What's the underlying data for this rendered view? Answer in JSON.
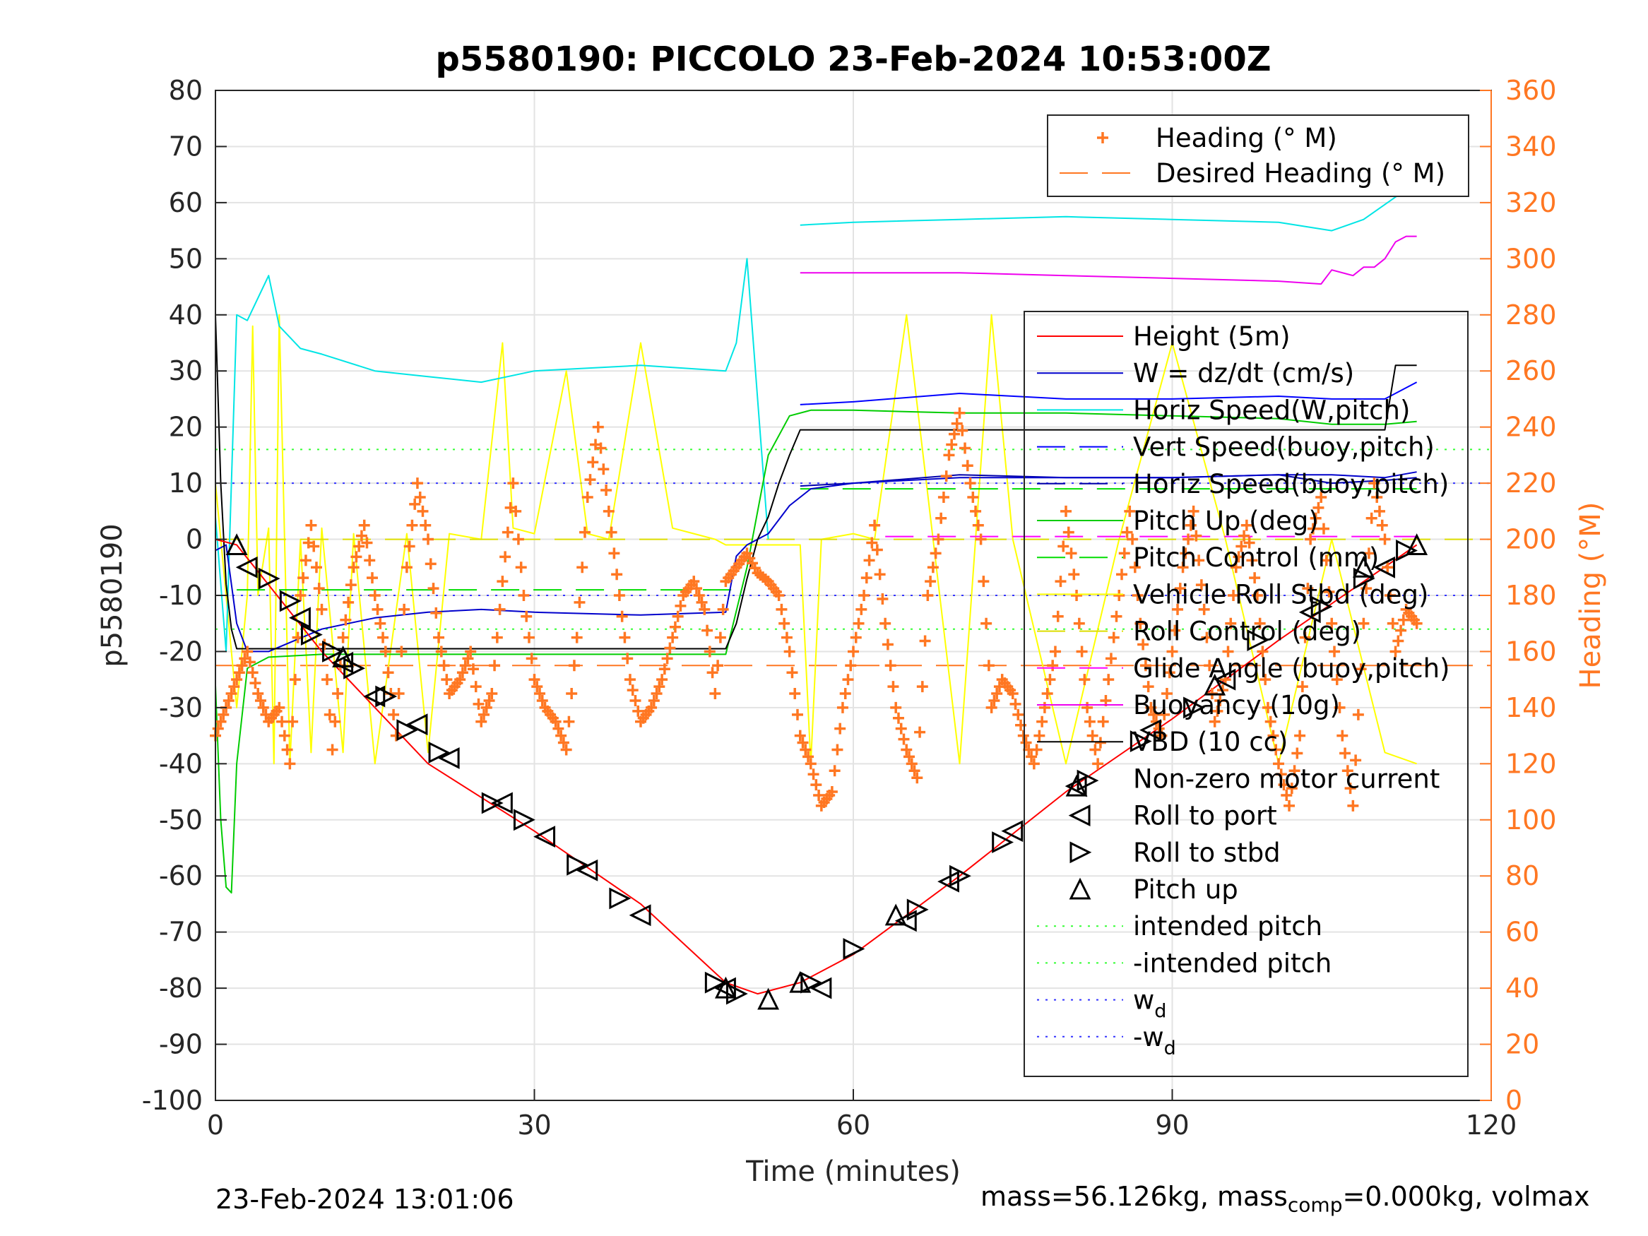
{
  "chart_data": {
    "type": "line",
    "title": "p5580190: PICCOLO 23-Feb-2024 10:53:00Z",
    "xlabel": "Time (minutes)",
    "ylabel_left": "p5580190",
    "ylabel_right": "Heading (°M)",
    "xlim": [
      0,
      120
    ],
    "ylim_left": [
      -100,
      80
    ],
    "ylim_right": [
      0,
      360
    ],
    "xticks": [
      "0",
      "30",
      "60",
      "90",
      "120"
    ],
    "yticks_left": [
      "80",
      "70",
      "60",
      "50",
      "40",
      "30",
      "20",
      "10",
      "0",
      "-10",
      "-20",
      "-30",
      "-40",
      "-50",
      "-60",
      "-70",
      "-80",
      "-90",
      "-100"
    ],
    "yticks_right": [
      "360",
      "340",
      "320",
      "300",
      "280",
      "260",
      "240",
      "220",
      "200",
      "180",
      "160",
      "140",
      "120",
      "100",
      "80",
      "60",
      "40",
      "20",
      "0"
    ],
    "grid": true,
    "colors": {
      "height": "#ff0000",
      "w": "#0000cc",
      "horiz_speed_w": "#00e5e5",
      "vert_speed_buoy": "#0000ff",
      "horiz_speed_buoy": "#0000aa",
      "pitch_up": "#00cc00",
      "pitch_control": "#00dd00",
      "roll": "#ffff00",
      "roll_control": "#dddd00",
      "glide_angle": "#ff00ff",
      "buoyancy": "#ee00ee",
      "vbd": "#000000",
      "heading": "#ff7722",
      "intended_pitch": "#33ff33",
      "wd": "#3333ff",
      "right_axis": "#ff7722"
    },
    "legend_top": [
      {
        "label": "Heading (° M)",
        "style": "plus"
      },
      {
        "label": "Desired Heading (° M)",
        "style": "dash"
      }
    ],
    "legend_main": [
      {
        "label": "Height (5m)"
      },
      {
        "label": "W = dz/dt (cm/s)"
      },
      {
        "label": "Horiz Speed(W,pitch)"
      },
      {
        "label": "Vert Speed(buoy,pitch)"
      },
      {
        "label": "Horiz Speed(buoy,pitch)"
      },
      {
        "label": "Pitch Up (deg)"
      },
      {
        "label": "Pitch Control (mm)"
      },
      {
        "label": "Vehicle Roll Stbd (deg)"
      },
      {
        "label": "Roll Control (deg)"
      },
      {
        "label": "Glide Angle (buoy,pitch)"
      },
      {
        "label": "Buoyancy (10g)"
      },
      {
        "label": "VBD (10 cc)"
      },
      {
        "label": "Non-zero motor current"
      },
      {
        "label": "Roll to port"
      },
      {
        "label": "Roll to stbd"
      },
      {
        "label": "Pitch up"
      },
      {
        "label": "intended pitch"
      },
      {
        "label": "-intended pitch"
      },
      {
        "label": "w",
        "sub": "d"
      },
      {
        "label": "-w",
        "sub": "d"
      }
    ],
    "series": {
      "height": {
        "x": [
          0,
          2,
          10,
          20,
          30,
          40,
          48,
          51,
          55,
          60,
          70,
          80,
          90,
          100,
          113
        ],
        "y": [
          0,
          -1,
          -20,
          -40,
          -52,
          -65,
          -79,
          -81,
          -79,
          -74,
          -60,
          -45,
          -32,
          -18,
          -1
        ]
      },
      "w": {
        "x": [
          0,
          1,
          2,
          3,
          5,
          10,
          15,
          20,
          25,
          30,
          40,
          48,
          49,
          50,
          52,
          54,
          56,
          60,
          70,
          80,
          90,
          100,
          105,
          110,
          113
        ],
        "y": [
          -2,
          -1,
          -15,
          -20,
          -20,
          -16,
          -14,
          -13,
          -12.5,
          -13,
          -13.5,
          -13,
          -3,
          -1,
          1,
          6,
          9,
          10,
          11,
          11,
          11,
          11.5,
          11.5,
          11,
          12
        ]
      },
      "horiz_speed_w": {
        "x": [
          0,
          1,
          2,
          3,
          4,
          5,
          6,
          8,
          10,
          15,
          20,
          25,
          30,
          40,
          48,
          49,
          50,
          51,
          52
        ],
        "y": [
          4,
          -20,
          40,
          39,
          43,
          47,
          38,
          34,
          33,
          30,
          29,
          28,
          30,
          31,
          30,
          35,
          50,
          25,
          0
        ]
      },
      "horiz_speed_w_2": {
        "x": [
          55,
          60,
          70,
          80,
          90,
          100,
          105,
          108,
          111,
          113,
          113.5
        ],
        "y": [
          56,
          56.5,
          57,
          57.5,
          57,
          56.5,
          55,
          57,
          61,
          63,
          68
        ]
      },
      "vert_speed_buoy": {
        "x": [
          55,
          60,
          70,
          80,
          90,
          100,
          105,
          110,
          113
        ],
        "y": [
          24,
          24.5,
          26,
          25,
          25,
          25.5,
          25,
          25,
          28
        ]
      },
      "horiz_speed_buoy": {
        "x": [
          55,
          60,
          70,
          80,
          90,
          100,
          105,
          110,
          113
        ],
        "y": [
          9.5,
          10,
          11.5,
          11,
          11,
          11.5,
          10,
          10.5,
          11
        ]
      },
      "pitch_up": {
        "x": [
          0,
          0.5,
          1,
          1.5,
          2,
          3,
          5,
          10,
          20,
          30,
          40,
          48,
          50,
          52,
          54,
          56,
          60,
          70,
          80,
          90,
          100,
          105,
          110,
          113
        ],
        "y": [
          -26,
          -50,
          -62,
          -63,
          -40,
          -23,
          -21,
          -20.5,
          -20.5,
          -20.5,
          -20.5,
          -20.5,
          -5,
          15,
          22,
          23,
          23,
          22.5,
          22.5,
          22,
          21.5,
          20.5,
          20.5,
          21
        ]
      },
      "pitch_control": {
        "x": [
          2,
          10,
          48,
          49
        ],
        "y": [
          -9,
          -9,
          -9,
          -9
        ]
      },
      "pitch_control_2": {
        "x": [
          55,
          113
        ],
        "y": [
          9,
          9
        ]
      },
      "roll": {
        "x": [
          0,
          2,
          3,
          3.5,
          4,
          5,
          5.5,
          6,
          7,
          8,
          9,
          10,
          12,
          13,
          15,
          18,
          20,
          22,
          25,
          27,
          28,
          30,
          33,
          35,
          37,
          40,
          43,
          45,
          47,
          48,
          50,
          55,
          56,
          57,
          60,
          62,
          65,
          70,
          73,
          75,
          80,
          85,
          90,
          95,
          100,
          105,
          110,
          113
        ],
        "y": [
          10,
          -30,
          -10,
          38,
          -10,
          2,
          -40,
          40,
          -40,
          0,
          -38,
          2,
          -38,
          1,
          -40,
          1,
          -38,
          1,
          0,
          35,
          2,
          1,
          30,
          1,
          0,
          35,
          2,
          1,
          0,
          -1,
          -1,
          -1,
          -40,
          0,
          1,
          0,
          40,
          -40,
          40,
          0,
          -40,
          0,
          35,
          0,
          -40,
          0,
          -38,
          -40
        ]
      },
      "roll_control": {
        "x": [
          0,
          120
        ],
        "y": [
          0,
          0
        ]
      },
      "glide_angle": {
        "x": [
          63,
          113
        ],
        "y": [
          0.5,
          0.5
        ]
      },
      "buoyancy": {
        "x": [
          55,
          60,
          70,
          80,
          90,
          100,
          104,
          105,
          107,
          108,
          109,
          110,
          111,
          112,
          113
        ],
        "y": [
          47.5,
          47.5,
          47.5,
          47,
          46.5,
          46,
          45.5,
          48,
          47,
          48.5,
          48.5,
          50,
          53,
          54,
          54
        ]
      },
      "vbd": {
        "x": [
          0,
          0.5,
          1,
          1.5,
          2,
          48,
          49,
          50,
          51,
          52,
          53,
          54,
          55,
          56,
          110,
          111,
          113
        ],
        "y": [
          40,
          10,
          -8,
          -16,
          -19.5,
          -19.5,
          -15,
          -7,
          0,
          4,
          10,
          15,
          19.5,
          19.5,
          19.5,
          31,
          31
        ]
      },
      "heading": {
        "x": [
          0,
          1,
          2,
          3,
          4,
          5,
          6,
          7,
          8,
          9,
          10,
          11,
          12,
          13,
          14,
          15,
          16,
          17,
          18,
          19,
          20,
          21,
          22,
          23,
          24,
          25,
          26,
          27,
          28,
          29,
          30,
          31,
          32,
          33,
          34,
          35,
          36,
          37,
          38,
          39,
          40,
          41,
          42,
          43,
          44,
          45,
          46,
          47,
          48,
          49,
          50,
          51,
          52,
          53,
          54,
          55,
          56,
          57,
          58,
          59,
          60,
          61,
          62,
          63,
          64,
          65,
          66,
          67,
          68,
          69,
          70,
          71,
          72,
          73,
          74,
          75,
          76,
          77,
          78,
          79,
          80,
          81,
          82,
          83,
          84,
          85,
          86,
          87,
          88,
          89,
          90,
          91,
          92,
          93,
          94,
          95,
          96,
          97,
          98,
          99,
          100,
          101,
          102,
          103,
          104,
          105,
          106,
          107,
          108,
          109,
          110,
          111,
          112,
          113
        ],
        "y": [
          130,
          140,
          150,
          160,
          145,
          135,
          140,
          120,
          180,
          205,
          175,
          125,
          165,
          190,
          205,
          180,
          160,
          130,
          190,
          220,
          200,
          165,
          145,
          150,
          160,
          135,
          145,
          185,
          220,
          180,
          150,
          140,
          135,
          125,
          165,
          215,
          240,
          210,
          180,
          150,
          135,
          140,
          150,
          165,
          180,
          185,
          175,
          145,
          185,
          190,
          195,
          188,
          185,
          180,
          160,
          130,
          120,
          105,
          110,
          140,
          160,
          180,
          205,
          170,
          140,
          125,
          115,
          180,
          200,
          230,
          245,
          220,
          200,
          140,
          150,
          145,
          130,
          120,
          140,
          160,
          210,
          180,
          140,
          120,
          150,
          180,
          210,
          170,
          140,
          130,
          160,
          190,
          210,
          175,
          135,
          150,
          190,
          205,
          180,
          140,
          120,
          105,
          130,
          200,
          215,
          170,
          130,
          105,
          170,
          220,
          200,
          160,
          175,
          170
        ]
      },
      "intended_pitch": {
        "x": [
          0,
          120
        ],
        "y": [
          16,
          16
        ]
      },
      "neg_intended_pitch": {
        "x": [
          0,
          120
        ],
        "y": [
          -16,
          -16
        ]
      },
      "wd": {
        "x": [
          0,
          120
        ],
        "y": [
          10,
          10
        ]
      },
      "neg_wd": {
        "x": [
          0,
          120
        ],
        "y": [
          -10,
          -10
        ]
      },
      "desired_heading": {
        "x": [
          0,
          120
        ],
        "y": [
          155,
          155
        ]
      }
    },
    "markers": {
      "roll_to_port": {
        "x": [
          3,
          8,
          12,
          15,
          19,
          22,
          27,
          31,
          35,
          40,
          48,
          57,
          65,
          69,
          75,
          81,
          88,
          95,
          103,
          110
        ],
        "y": [
          -5,
          -14,
          -22,
          -28,
          -33,
          -39,
          -47,
          -53,
          -59,
          -67,
          -80,
          -80,
          -68,
          -61,
          -52,
          -44,
          -34,
          -25,
          -13,
          -5
        ]
      },
      "roll_to_stbd": {
        "x": [
          5,
          7,
          9,
          11,
          13,
          16,
          18,
          21,
          26,
          29,
          34,
          38,
          47,
          49,
          56,
          60,
          66,
          70,
          74,
          82,
          87,
          92,
          98,
          104,
          108,
          112
        ],
        "y": [
          -7,
          -11,
          -17,
          -20,
          -23,
          -28,
          -34,
          -38,
          -47,
          -50,
          -58,
          -64,
          -79,
          -81,
          -79,
          -73,
          -66,
          -60,
          -54,
          -43,
          -36,
          -30,
          -18,
          -12,
          -7,
          -2
        ]
      },
      "pitch_up": {
        "x": [
          2,
          12,
          48,
          52,
          55,
          64,
          81,
          94,
          108,
          113
        ],
        "y": [
          -1,
          -21,
          -80,
          -82,
          -79,
          -67,
          -44,
          -26,
          -5,
          -1
        ]
      }
    }
  },
  "footer": {
    "timestamp": "23-Feb-2024 13:01:06",
    "mass_prefix": "mass=56.126kg, mass",
    "mass_sub": "comp",
    "mass_suffix": "=0.000kg, volmax"
  }
}
